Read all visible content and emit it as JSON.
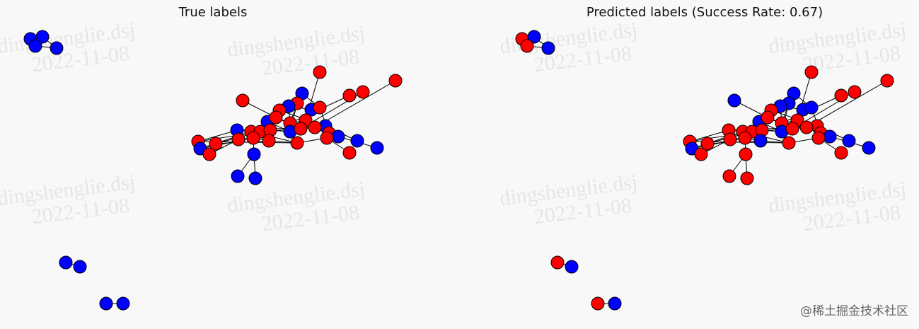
{
  "panels": [
    {
      "title": "True labels"
    },
    {
      "title": "Predicted labels (Success Rate: 0.67)"
    }
  ],
  "watermark": {
    "name": "dingshenglie.dsj",
    "date": "2022-11-08"
  },
  "footer": "@稀土掘金技术社区"
}
